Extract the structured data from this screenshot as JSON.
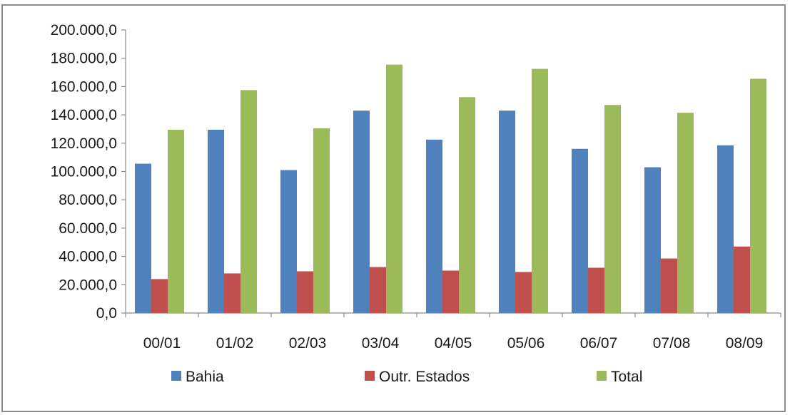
{
  "chart_data": {
    "type": "bar",
    "categories": [
      "00/01",
      "01/02",
      "02/03",
      "03/04",
      "04/05",
      "05/06",
      "06/07",
      "07/08",
      "08/09"
    ],
    "series": [
      {
        "name": "Bahia",
        "color": "#4f81bd",
        "values": [
          105500,
          129500,
          101000,
          143000,
          122500,
          143000,
          116000,
          103000,
          118500
        ]
      },
      {
        "name": "Outr. Estados",
        "color": "#c0504d",
        "values": [
          24000,
          28000,
          29500,
          32500,
          30000,
          29000,
          32000,
          38500,
          47000
        ]
      },
      {
        "name": "Total",
        "color": "#9bbb59",
        "values": [
          129500,
          157500,
          130500,
          175500,
          152500,
          172500,
          147000,
          141500,
          165500
        ]
      }
    ],
    "ylim": [
      0,
      200000
    ],
    "yticks": [
      0,
      20000,
      40000,
      60000,
      80000,
      100000,
      120000,
      140000,
      160000,
      180000,
      200000
    ],
    "ytick_labels": [
      "0,0",
      "20.000,0",
      "40.000,0",
      "60.000,0",
      "80.000,0",
      "100.000,0",
      "120.000,0",
      "140.000,0",
      "160.000,0",
      "180.000,0",
      "200.000,0"
    ],
    "grid": false,
    "legend_position": "bottom"
  }
}
